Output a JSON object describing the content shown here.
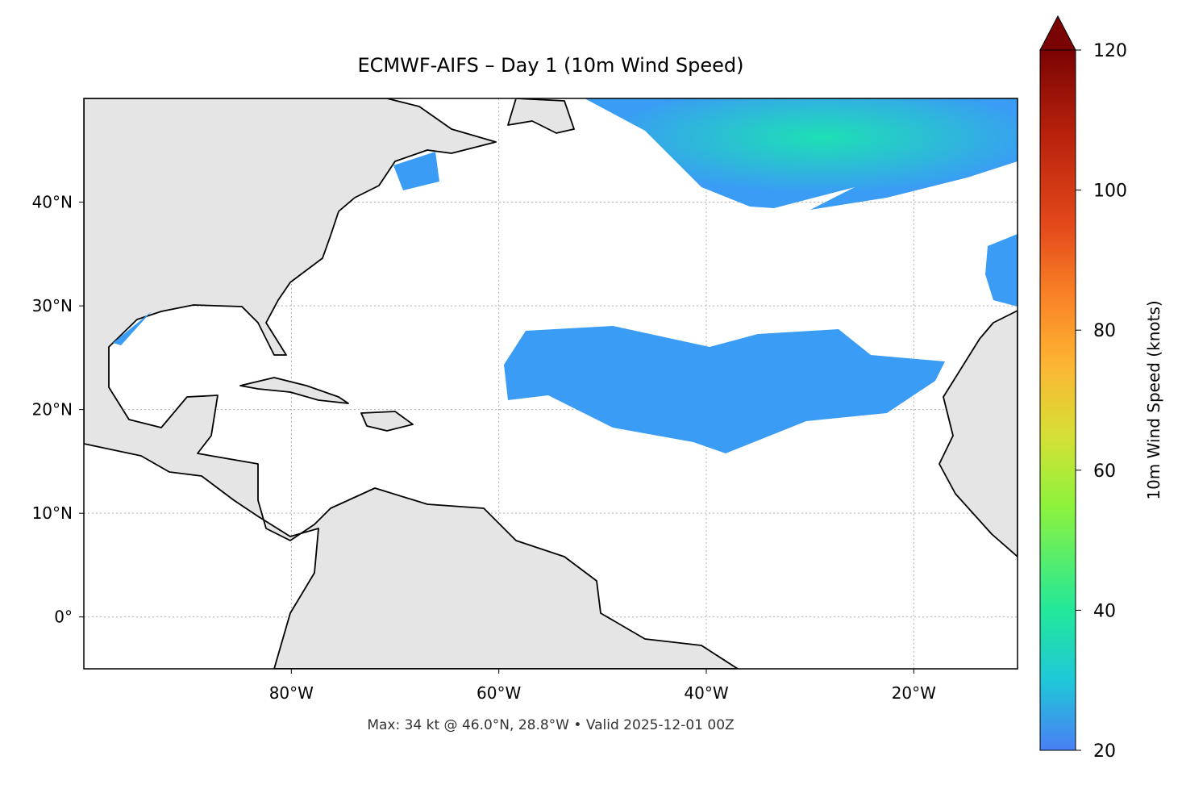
{
  "map": {
    "title": "ECMWF-AIFS – Day 1 (10m Wind Speed)",
    "footer": "Max: 34 kt @ 46.0°N, 28.8°W • Valid 2025-12-01 00Z",
    "lonlim": [
      -100,
      -10
    ],
    "latlim": [
      -5,
      50
    ],
    "lonticks": [
      {
        "value": -80,
        "label": "80°W"
      },
      {
        "value": -60,
        "label": "60°W"
      },
      {
        "value": -40,
        "label": "40°W"
      },
      {
        "value": -20,
        "label": "20°W"
      }
    ],
    "latticks": [
      {
        "value": 0,
        "label": "0°"
      },
      {
        "value": 10,
        "label": "10°N"
      },
      {
        "value": 20,
        "label": "20°N"
      },
      {
        "value": 30,
        "label": "30°N"
      },
      {
        "value": 40,
        "label": "40°N"
      }
    ],
    "colorbar": {
      "label": "10m Wind Speed (knots)",
      "lim": [
        20,
        120
      ],
      "ticks": [
        20,
        40,
        60,
        80,
        100,
        120
      ]
    }
  }
}
